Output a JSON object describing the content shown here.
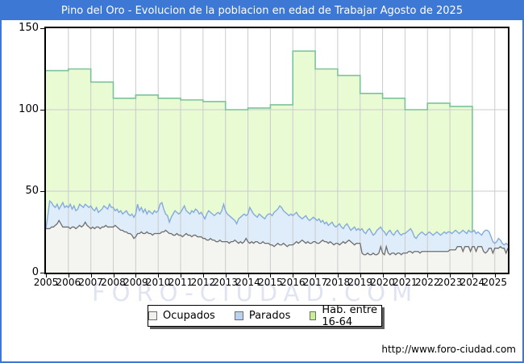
{
  "window": {
    "title": "Pino del Oro - Evolucion de la poblacion en edad de Trabajar Agosto de 2025"
  },
  "watermark": "FORO-CIUDAD.COM",
  "footer": {
    "url": "http://www.foro-ciudad.com"
  },
  "legend": {
    "items": [
      {
        "label": "Ocupados"
      },
      {
        "label": "Parados"
      },
      {
        "label": "Hab. entre 16-64"
      }
    ]
  },
  "colors": {
    "frame": "#3d78d4",
    "title_fg": "#ffffff",
    "grid": "#cbcbcb",
    "ocupados_fill": "#f4f4f1",
    "ocupados_line": "#6e6e6e",
    "parados_fill": "#dfecf9",
    "parados_line": "#84abdc",
    "hab_fill": "#e9fbd3",
    "hab_line": "#7cc39c",
    "legend_swatch_ocupados": "#f0f0ee",
    "legend_swatch_parados": "#b9d3ef",
    "legend_swatch_hab": "#c9ee95"
  },
  "chart_data": {
    "type": "area",
    "title": "Pino del Oro - Evolucion de la poblacion en edad de Trabajar Agosto de 2025",
    "xlabel": "",
    "ylabel": "",
    "ylim": [
      0,
      150
    ],
    "y_ticks": [
      0,
      50,
      100,
      150
    ],
    "x_tick_labels": [
      "2005",
      "2006",
      "2007",
      "2008",
      "2009",
      "2010",
      "2011",
      "2012",
      "2013",
      "2014",
      "2015",
      "2016",
      "2017",
      "2018",
      "2019",
      "2020",
      "2021",
      "2022",
      "2023",
      "2024",
      "2025"
    ],
    "x_range": "2005-01 to 2025-08, monthly",
    "grid": true,
    "legend_position": "bottom",
    "series": [
      {
        "name": "Ocupados",
        "kind": "monthly",
        "start": "2005-01",
        "values": [
          27,
          27,
          27,
          28,
          28,
          29,
          30,
          32,
          30,
          28,
          28,
          28,
          28,
          27,
          28,
          28,
          27,
          28,
          29,
          28,
          29,
          31,
          29,
          28,
          27,
          28,
          27,
          28,
          28,
          27,
          28,
          28,
          29,
          28,
          28,
          28,
          28,
          29,
          28,
          27,
          26,
          26,
          25,
          25,
          24,
          24,
          23,
          21,
          22,
          24,
          24,
          25,
          24,
          24,
          25,
          24,
          24,
          23,
          24,
          24,
          24,
          24,
          25,
          25,
          26,
          25,
          24,
          24,
          23,
          23,
          24,
          23,
          23,
          22,
          23,
          24,
          23,
          23,
          22,
          23,
          23,
          22,
          22,
          22,
          21,
          21,
          20,
          20,
          21,
          20,
          20,
          19,
          19,
          20,
          19,
          19,
          19,
          19,
          18,
          19,
          19,
          20,
          19,
          18,
          19,
          18,
          19,
          21,
          19,
          18,
          19,
          18,
          19,
          19,
          18,
          18,
          19,
          18,
          18,
          18,
          17,
          17,
          16,
          17,
          18,
          17,
          17,
          18,
          17,
          16,
          17,
          17,
          17,
          18,
          19,
          18,
          19,
          20,
          19,
          18,
          19,
          18,
          18,
          19,
          19,
          18,
          18,
          19,
          20,
          19,
          19,
          18,
          19,
          18,
          17,
          18,
          18,
          17,
          18,
          19,
          18,
          19,
          20,
          19,
          18,
          17,
          18,
          18,
          18,
          12,
          11,
          11,
          12,
          11,
          11,
          12,
          11,
          11,
          12,
          16,
          12,
          11,
          16,
          12,
          11,
          12,
          12,
          11,
          12,
          12,
          11,
          12,
          12,
          12,
          13,
          13,
          12,
          13,
          13,
          13,
          12,
          13,
          13,
          13,
          13,
          13,
          13,
          13,
          13,
          13,
          13,
          13,
          13,
          13,
          13,
          13,
          14,
          14,
          14,
          14,
          16,
          16,
          16,
          13,
          16,
          16,
          16,
          13,
          16,
          16,
          13,
          16,
          16,
          16,
          13,
          12,
          13,
          15,
          15,
          12,
          15,
          15,
          15,
          16,
          15,
          15,
          12,
          15
        ]
      },
      {
        "name": "Parados",
        "kind": "monthly",
        "stacked_on": "Ocupados",
        "start": "2005-01",
        "values": [
          0,
          8,
          17,
          15,
          13,
          11,
          12,
          7,
          11,
          15,
          12,
          13,
          12,
          15,
          11,
          13,
          11,
          11,
          13,
          13,
          11,
          11,
          12,
          12,
          14,
          11,
          11,
          12,
          9,
          11,
          11,
          13,
          11,
          11,
          14,
          12,
          12,
          9,
          11,
          10,
          12,
          10,
          12,
          13,
          12,
          11,
          13,
          13,
          14,
          18,
          14,
          15,
          13,
          15,
          11,
          14,
          13,
          13,
          14,
          13,
          14,
          18,
          18,
          14,
          10,
          10,
          7,
          10,
          13,
          15,
          13,
          13,
          14,
          17,
          18,
          14,
          14,
          13,
          16,
          14,
          16,
          16,
          14,
          15,
          14,
          12,
          16,
          18,
          16,
          16,
          15,
          17,
          18,
          16,
          19,
          23,
          19,
          17,
          17,
          15,
          14,
          12,
          11,
          15,
          15,
          17,
          17,
          14,
          17,
          22,
          19,
          18,
          16,
          15,
          18,
          17,
          15,
          15,
          17,
          18,
          19,
          18,
          21,
          21,
          21,
          24,
          23,
          20,
          20,
          20,
          18,
          19,
          18,
          18,
          18,
          17,
          15,
          13,
          15,
          17,
          14,
          14,
          15,
          15,
          14,
          14,
          15,
          12,
          12,
          11,
          12,
          11,
          11,
          13,
          12,
          10,
          11,
          13,
          10,
          8,
          11,
          11,
          8,
          7,
          9,
          11,
          8,
          9,
          8,
          15,
          14,
          13,
          14,
          16,
          14,
          11,
          13,
          15,
          15,
          12,
          14,
          14,
          7,
          13,
          15,
          12,
          11,
          14,
          14,
          12,
          12,
          12,
          12,
          13,
          13,
          14,
          13,
          9,
          8,
          10,
          12,
          12,
          11,
          10,
          11,
          12,
          11,
          10,
          11,
          12,
          11,
          10,
          11,
          12,
          11,
          12,
          11,
          10,
          11,
          12,
          9,
          8,
          9,
          13,
          9,
          8,
          10,
          12,
          9,
          10,
          11,
          9,
          8,
          7,
          12,
          14,
          13,
          10,
          7,
          7,
          3,
          4,
          6,
          4,
          3,
          2,
          6,
          2
        ]
      },
      {
        "name": "Hab. entre 16-64",
        "kind": "annual_step",
        "years": [
          2005,
          2006,
          2007,
          2008,
          2009,
          2010,
          2011,
          2012,
          2013,
          2014,
          2015,
          2016,
          2017,
          2018,
          2019,
          2020,
          2021,
          2022,
          2023
        ],
        "values": [
          124,
          125,
          117,
          107,
          109,
          107,
          106,
          105,
          100,
          101,
          103,
          136,
          125,
          121,
          110,
          107,
          100,
          104,
          102
        ]
      }
    ]
  }
}
